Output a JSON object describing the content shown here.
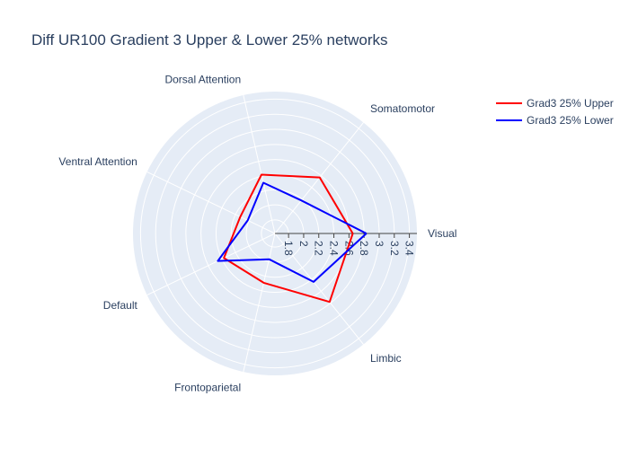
{
  "chart_data": {
    "type": "radar",
    "title": "Diff UR100 Gradient 3 Upper & Lower 25% networks",
    "categories": [
      "Visual",
      "Somatomotor",
      "Dorsal Attention",
      "Ventral Attention",
      "Default",
      "Frontoparietal",
      "Limbic"
    ],
    "radial_ticks": [
      "1.8",
      "2",
      "2.2",
      "2.4",
      "2.6",
      "2.8",
      "3",
      "3.2",
      "3.4"
    ],
    "radial_range": [
      1.62,
      3.5
    ],
    "legend_position": "top-right",
    "series": [
      {
        "name": "Grad3 25% Upper",
        "color": "#ff0000",
        "values": [
          2.65,
          2.57,
          2.42,
          2.13,
          2.37,
          2.29,
          2.78
        ]
      },
      {
        "name": "Grad3 25% Lower",
        "color": "#0000ff",
        "values": [
          2.83,
          2.18,
          2.31,
          2.02,
          2.46,
          1.97,
          2.44
        ]
      }
    ]
  }
}
